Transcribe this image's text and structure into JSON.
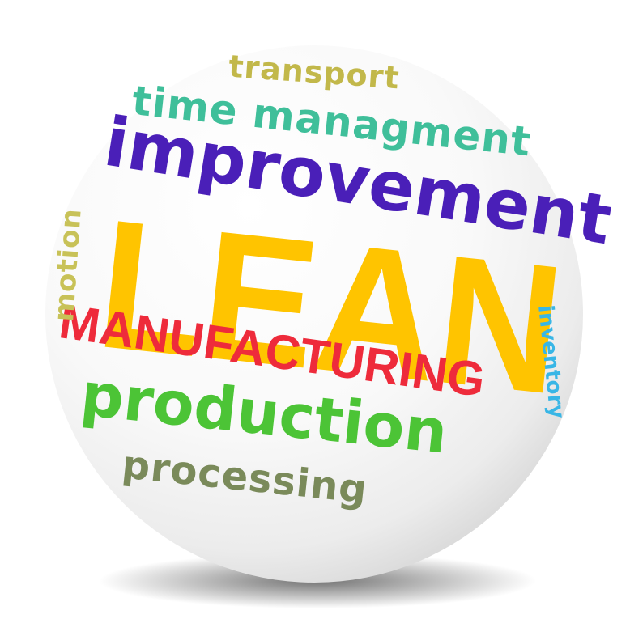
{
  "words": {
    "transport": "transport",
    "time_management": "time managment",
    "improvement": "improvement",
    "lean": "LEAN",
    "manufacturing": "MANUFACTURING",
    "production": "production",
    "processing": "processing",
    "motion": "motion",
    "inventory": "inventory"
  },
  "colors": {
    "transport": "#c2b84a",
    "time_management": "#3fbf9a",
    "improvement": "#4a1fb8",
    "lean": "#ffc400",
    "manufacturing": "#ee2b3b",
    "production": "#4cc436",
    "processing": "#7a8a5a",
    "motion": "#c8c258",
    "inventory": "#38b6e6"
  },
  "icons": {
    "sphere": "white-sphere",
    "shadow": "sphere-shadow"
  }
}
